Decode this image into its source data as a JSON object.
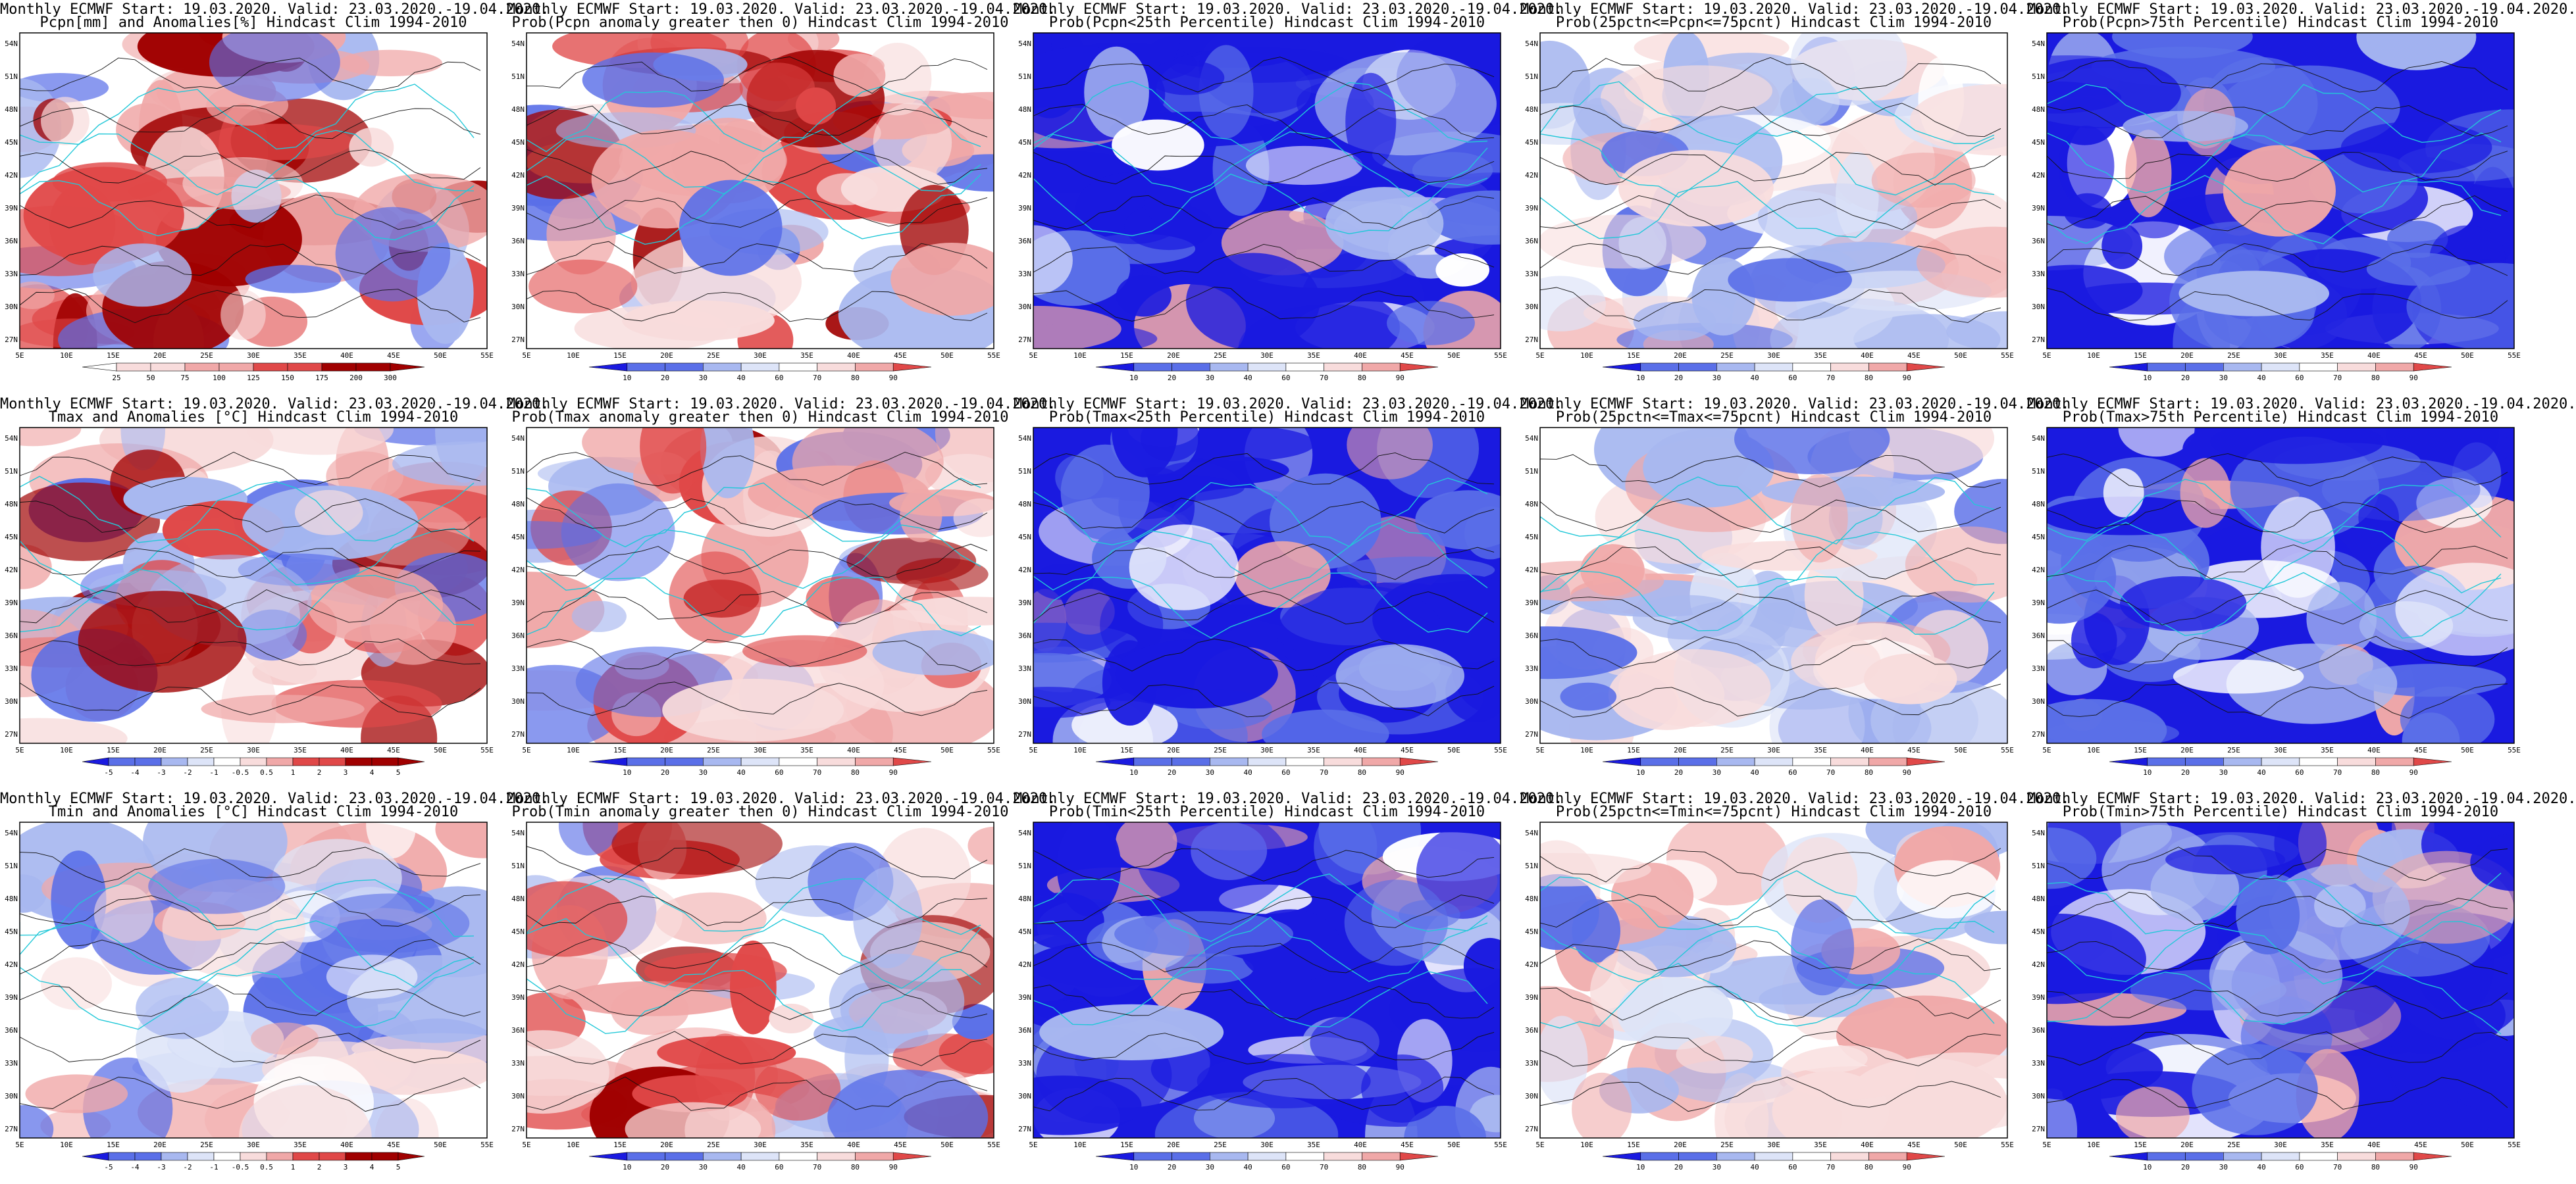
{
  "colors": {
    "neg3": "#1a1ae0",
    "neg2": "#5a6fe8",
    "neg1": "#a8b8f0",
    "neg0": "#dde4f8",
    "zero": "#ffffff",
    "pos0": "#f8dcdc",
    "pos1": "#f0a8a8",
    "pos2": "#e04848",
    "pos3": "#a00000",
    "coast": "#22c8d8",
    "contour": "#111111",
    "border": "#000000"
  },
  "axes": {
    "lat_labels": [
      "54N",
      "51N",
      "48N",
      "45N",
      "42N",
      "39N",
      "36N",
      "33N",
      "30N",
      "27N"
    ],
    "lon_labels": [
      "5E",
      "10E",
      "15E",
      "20E",
      "25E",
      "30E",
      "35E",
      "40E",
      "45E",
      "50E",
      "55E"
    ]
  },
  "panels": [
    {
      "row": 0,
      "col": 0,
      "title1": "Monthly ECMWF Start: 19.03.2020. Valid: 23.03.2020.-19.04.2020.",
      "title2": "Pcpn[mm] and Anomalies[%] Hindcast Clim 1994-2010",
      "scheme": "red",
      "colorbar": [
        "25",
        "50",
        "75",
        "100",
        "125",
        "150",
        "175",
        "200",
        "300"
      ]
    },
    {
      "row": 0,
      "col": 1,
      "title1": "Monthly ECMWF Start: 19.03.2020. Valid: 23.03.2020.-19.04.2020.",
      "title2": "Prob(Pcpn anomaly greater then 0) Hindcast Clim 1994-2010",
      "scheme": "red",
      "colorbar": [
        "10",
        "20",
        "30",
        "40",
        "60",
        "70",
        "80",
        "90"
      ]
    },
    {
      "row": 0,
      "col": 2,
      "title1": "Monthly ECMWF Start: 19.03.2020. Valid: 23.03.2020.-19.04.2020.",
      "title2": "Prob(Pcpn<25th Percentile) Hindcast Clim 1994-2010",
      "scheme": "blue",
      "colorbar": [
        "10",
        "20",
        "30",
        "40",
        "60",
        "70",
        "80",
        "90"
      ]
    },
    {
      "row": 0,
      "col": 3,
      "title1": "Monthly ECMWF Start: 19.03.2020. Valid: 23.03.2020.-19.04.2020.",
      "title2": "Prob(25pctn<=Pcpn<=75pcnt) Hindcast Clim 1994-2010",
      "scheme": "mix",
      "colorbar": [
        "10",
        "20",
        "30",
        "40",
        "60",
        "70",
        "80",
        "90"
      ]
    },
    {
      "row": 0,
      "col": 4,
      "title1": "Monthly ECMWF Start: 19.03.2020. Valid: 23.03.2020.-19.04.2020.",
      "title2": "Prob(Pcpn>75th Percentile) Hindcast Clim 1994-2010",
      "scheme": "blue",
      "colorbar": [
        "10",
        "20",
        "30",
        "40",
        "60",
        "70",
        "80",
        "90"
      ]
    },
    {
      "row": 1,
      "col": 0,
      "title1": "Monthly ECMWF Start: 19.03.2020. Valid: 23.03.2020.-19.04.2020.",
      "title2": "Tmax and Anomalies [°C] Hindcast Clim 1994-2010",
      "scheme": "red",
      "colorbar": [
        "-5",
        "-4",
        "-3",
        "-2",
        "-1",
        "-0.5",
        "0.5",
        "1",
        "2",
        "3",
        "4",
        "5"
      ]
    },
    {
      "row": 1,
      "col": 1,
      "title1": "Monthly ECMWF Start: 19.03.2020. Valid: 23.03.2020.-19.04.2020.",
      "title2": "Prob(Tmax anomaly greater then 0) Hindcast Clim 1994-2010",
      "scheme": "red",
      "colorbar": [
        "10",
        "20",
        "30",
        "40",
        "60",
        "70",
        "80",
        "90"
      ]
    },
    {
      "row": 1,
      "col": 2,
      "title1": "Monthly ECMWF Start: 19.03.2020. Valid: 23.03.2020.-19.04.2020.",
      "title2": "Prob(Tmax<25th Percentile) Hindcast Clim 1994-2010",
      "scheme": "blue",
      "colorbar": [
        "10",
        "20",
        "30",
        "40",
        "60",
        "70",
        "80",
        "90"
      ]
    },
    {
      "row": 1,
      "col": 3,
      "title1": "Monthly ECMWF Start: 19.03.2020. Valid: 23.03.2020.-19.04.2020.",
      "title2": "Prob(25pctn<=Tmax<=75pcnt) Hindcast Clim 1994-2010",
      "scheme": "mix",
      "colorbar": [
        "10",
        "20",
        "30",
        "40",
        "60",
        "70",
        "80",
        "90"
      ]
    },
    {
      "row": 1,
      "col": 4,
      "title1": "Monthly ECMWF Start: 19.03.2020. Valid: 23.03.2020.-19.04.2020.",
      "title2": "Prob(Tmax>75th Percentile) Hindcast Clim 1994-2010",
      "scheme": "blue",
      "colorbar": [
        "10",
        "20",
        "30",
        "40",
        "60",
        "70",
        "80",
        "90"
      ]
    },
    {
      "row": 2,
      "col": 0,
      "title1": "Monthly ECMWF Start: 19.03.2020. Valid: 23.03.2020.-19.04.2020.",
      "title2": "Tmin and Anomalies [°C] Hindcast Clim 1994-2010",
      "scheme": "mix",
      "colorbar": [
        "-5",
        "-4",
        "-3",
        "-2",
        "-1",
        "-0.5",
        "0.5",
        "1",
        "2",
        "3",
        "4",
        "5"
      ]
    },
    {
      "row": 2,
      "col": 1,
      "title1": "Monthly ECMWF Start: 19.03.2020. Valid: 23.03.2020.-19.04.2020.",
      "title2": "Prob(Tmin anomaly greater then 0) Hindcast Clim 1994-2010",
      "scheme": "red",
      "colorbar": [
        "10",
        "20",
        "30",
        "40",
        "60",
        "70",
        "80",
        "90"
      ]
    },
    {
      "row": 2,
      "col": 2,
      "title1": "Monthly ECMWF Start: 19.03.2020. Valid: 23.03.2020.-19.04.2020.",
      "title2": "Prob(Tmin<25th Percentile) Hindcast Clim 1994-2010",
      "scheme": "blue",
      "colorbar": [
        "10",
        "20",
        "30",
        "40",
        "60",
        "70",
        "80",
        "90"
      ]
    },
    {
      "row": 2,
      "col": 3,
      "title1": "Monthly ECMWF Start: 19.03.2020. Valid: 23.03.2020.-19.04.2020.",
      "title2": "Prob(25pctn<=Tmin<=75pcnt) Hindcast Clim 1994-2010",
      "scheme": "mix",
      "colorbar": [
        "10",
        "20",
        "30",
        "40",
        "60",
        "70",
        "80",
        "90"
      ]
    },
    {
      "row": 2,
      "col": 4,
      "title1": "Monthly ECMWF Start: 19.03.2020. Valid: 23.03.2020.-19.04.2020.",
      "title2": "Prob(Tmin>75th Percentile) Hindcast Clim 1994-2010",
      "scheme": "blue",
      "colorbar": [
        "10",
        "20",
        "30",
        "40",
        "60",
        "70",
        "80",
        "90"
      ]
    }
  ]
}
